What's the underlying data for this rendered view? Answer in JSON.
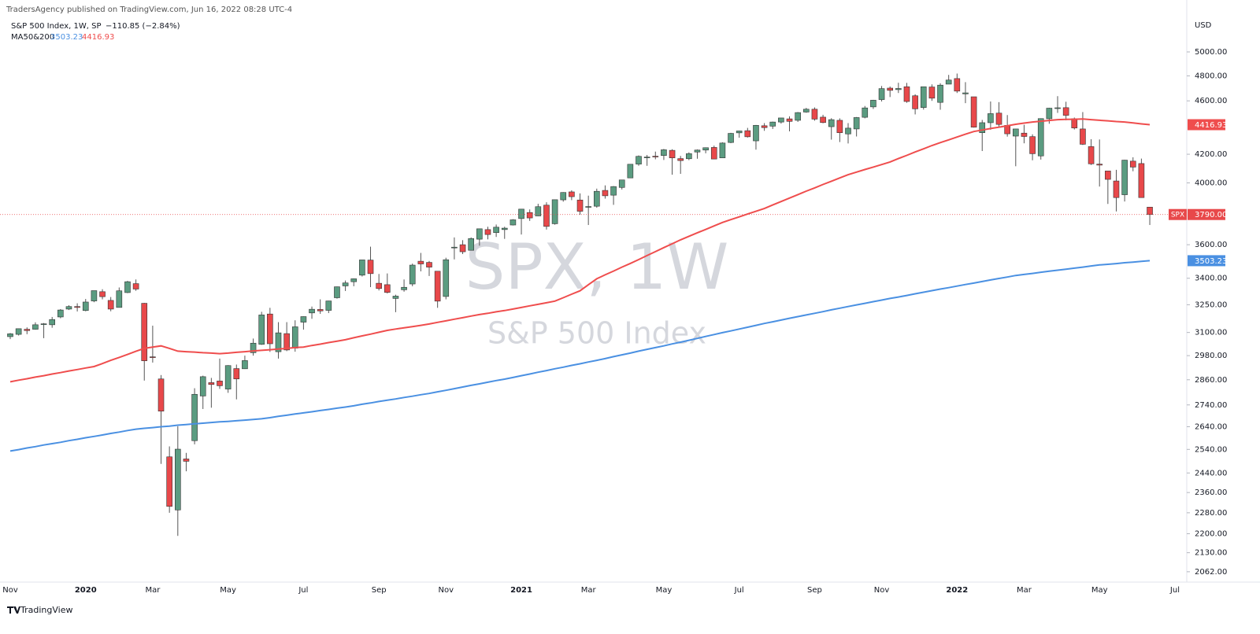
{
  "header": {
    "publisher": "TradersAgency published on TradingView.com, Jun 16, 2022 08:28 UTC-4",
    "symbol": "S&P 500 Index, 1W, SP",
    "change": "−110.85 (−2.84%)",
    "indicator": "MA50&200"
  },
  "chart_data": {
    "type": "candlestick",
    "watermark": "SPX, 1W",
    "watermark_sub": "S&P 500 Index",
    "currency": "USD",
    "symbol": "SPX",
    "last_label": "3790.00",
    "up_color": "#5b9c81",
    "down_color": "#e8484a",
    "log": true,
    "grid": false,
    "categories": [
      "Nov",
      null,
      null,
      null,
      null,
      null,
      null,
      null,
      null,
      "2020",
      null,
      null,
      null,
      null,
      null,
      null,
      null,
      "Mar",
      null,
      null,
      null,
      null,
      null,
      null,
      null,
      null,
      "May",
      null,
      null,
      null,
      null,
      null,
      null,
      null,
      null,
      "Jul",
      null,
      null,
      null,
      null,
      null,
      null,
      null,
      null,
      "Sep",
      null,
      null,
      null,
      null,
      null,
      null,
      null,
      "Nov",
      null,
      null,
      null,
      null,
      null,
      null,
      null,
      null,
      "2021",
      null,
      null,
      null,
      null,
      null,
      null,
      null,
      "Mar",
      null,
      null,
      null,
      null,
      null,
      null,
      null,
      null,
      "May",
      null,
      null,
      null,
      null,
      null,
      null,
      null,
      null,
      "Jul",
      null,
      null,
      null,
      null,
      null,
      null,
      null,
      null,
      "Sep",
      null,
      null,
      null,
      null,
      null,
      null,
      null,
      "Nov",
      null,
      null,
      null,
      null,
      null,
      null,
      null,
      null,
      "2022",
      null,
      null,
      null,
      null,
      null,
      null,
      null,
      "Mar",
      null,
      null,
      null,
      null,
      null,
      null,
      null,
      null,
      "May",
      null,
      null,
      null,
      null,
      null,
      null,
      null,
      null,
      "Jul"
    ],
    "open": [
      3078,
      3090,
      3117,
      3117,
      3143,
      3141,
      3183,
      3226,
      3240,
      3218,
      3271,
      3323,
      3274,
      3235,
      3318,
      3369,
      3258,
      2974,
      2864,
      2508,
      2291,
      2499,
      2578,
      2782,
      2846,
      2854,
      2815,
      2915,
      2914,
      2995,
      3038,
      3199,
      3000,
      3094,
      3018,
      3155,
      3205,
      3224,
      3219,
      3289,
      3356,
      3380,
      3418,
      3507,
      3371,
      3363,
      3285,
      3334,
      3367,
      3500,
      3493,
      3441,
      3296,
      3584,
      3600,
      3566,
      3634,
      3694,
      3675,
      3694,
      3723,
      3764,
      3803,
      3781,
      3851,
      3731,
      3886,
      3939,
      3885,
      3842,
      3844,
      3949,
      3917,
      3969,
      4034,
      4130,
      4179,
      4186,
      4191,
      4228,
      4169,
      4168,
      4216,
      4230,
      4249,
      4174,
      4285,
      4356,
      4372,
      4297,
      4409,
      4406,
      4437,
      4461,
      4450,
      4513,
      4535,
      4474,
      4402,
      4450,
      4348,
      4385,
      4473,
      4553,
      4610,
      4701,
      4689,
      4712,
      4640,
      4548,
      4710,
      4588,
      4733,
      4778,
      4655,
      4632,
      4357,
      4432,
      4505,
      4412,
      4332,
      4354,
      4328,
      4188,
      4462,
      4541,
      4547,
      4462,
      4385,
      4255,
      4130,
      4082,
      4013,
      3920,
      4151,
      4134,
      3838,
      null,
      null,
      null
    ],
    "high": [
      3097,
      3120,
      3127,
      3154,
      3150,
      3183,
      3226,
      3247,
      3258,
      3282,
      3329,
      3337,
      3293,
      3347,
      3385,
      3393,
      3260,
      3136,
      2883,
      2553,
      2642,
      2525,
      2819,
      2880,
      2869,
      2965,
      2932,
      2935,
      2980,
      3068,
      3211,
      3233,
      3155,
      3155,
      3165,
      3186,
      3240,
      3280,
      3272,
      3352,
      3387,
      3399,
      3509,
      3588,
      3425,
      3428,
      3306,
      3393,
      3486,
      3550,
      3502,
      3441,
      3521,
      3645,
      3628,
      3645,
      3699,
      3712,
      3726,
      3712,
      3760,
      3826,
      3823,
      3860,
      3870,
      3887,
      3937,
      3950,
      3929,
      3914,
      3961,
      3983,
      3978,
      4020,
      4130,
      4191,
      4195,
      4219,
      4238,
      4236,
      4188,
      4214,
      4234,
      4249,
      4262,
      4286,
      4356,
      4372,
      4393,
      4415,
      4429,
      4440,
      4468,
      4480,
      4513,
      4545,
      4549,
      4492,
      4466,
      4465,
      4429,
      4475,
      4560,
      4608,
      4718,
      4714,
      4744,
      4743,
      4652,
      4713,
      4731,
      4740,
      4808,
      4819,
      4749,
      4632,
      4453,
      4595,
      4590,
      4490,
      4385,
      4416,
      4345,
      4465,
      4546,
      4637,
      4593,
      4471,
      4513,
      4309,
      4307,
      4082,
      4090,
      4160,
      4178,
      4169,
      3838,
      null,
      null,
      null
    ],
    "low": [
      3065,
      3084,
      3091,
      3115,
      3070,
      3125,
      3176,
      3221,
      3213,
      3214,
      3264,
      3280,
      3214,
      3235,
      3315,
      3328,
      2856,
      2945,
      2478,
      2280,
      2192,
      2447,
      2562,
      2721,
      2727,
      2816,
      2797,
      2766,
      2913,
      2980,
      3035,
      2999,
      2965,
      3003,
      3000,
      3115,
      3173,
      3200,
      3204,
      3284,
      3327,
      3354,
      3410,
      3349,
      3330,
      3313,
      3209,
      3323,
      3354,
      3440,
      3413,
      3233,
      3280,
      3511,
      3543,
      3566,
      3594,
      3633,
      3648,
      3636,
      3720,
      3663,
      3749,
      3780,
      3694,
      3725,
      3874,
      3884,
      3789,
      3723,
      3834,
      3894,
      3853,
      3955,
      4034,
      4118,
      4118,
      4164,
      4159,
      4056,
      4062,
      4158,
      4168,
      4207,
      4164,
      4174,
      4280,
      4320,
      4321,
      4233,
      4371,
      4385,
      4425,
      4367,
      4438,
      4508,
      4447,
      4428,
      4306,
      4288,
      4278,
      4329,
      4465,
      4537,
      4595,
      4630,
      4662,
      4585,
      4495,
      4532,
      4600,
      4531,
      4733,
      4662,
      4582,
      4395,
      4223,
      4379,
      4401,
      4328,
      4115,
      4279,
      4157,
      4162,
      4424,
      4507,
      4450,
      4381,
      4267,
      4124,
      3975,
      3859,
      3810,
      3875,
      4080,
      3900,
      3723,
      null,
      null,
      null
    ],
    "close": [
      3093,
      3120,
      3110,
      3141,
      3146,
      3169,
      3221,
      3240,
      3235,
      3265,
      3329,
      3295,
      3226,
      3328,
      3380,
      3338,
      2954,
      2972,
      2711,
      2305,
      2541,
      2489,
      2790,
      2875,
      2837,
      2831,
      2930,
      2864,
      2955,
      3044,
      3194,
      3041,
      3098,
      3009,
      3130,
      3185,
      3225,
      3216,
      3271,
      3351,
      3373,
      3397,
      3508,
      3427,
      3341,
      3319,
      3298,
      3348,
      3477,
      3484,
      3465,
      3270,
      3509,
      3585,
      3557,
      3638,
      3699,
      3663,
      3709,
      3703,
      3756,
      3825,
      3768,
      3841,
      3714,
      3887,
      3935,
      3907,
      3811,
      3842,
      3943,
      3913,
      3975,
      4020,
      4129,
      4185,
      4180,
      4181,
      4232,
      4174,
      4155,
      4204,
      4230,
      4247,
      4166,
      4281,
      4352,
      4370,
      4327,
      4412,
      4395,
      4437,
      4468,
      4442,
      4509,
      4535,
      4459,
      4433,
      4455,
      4357,
      4391,
      4471,
      4545,
      4605,
      4697,
      4683,
      4698,
      4595,
      4538,
      4712,
      4621,
      4725,
      4766,
      4677,
      4663,
      4398,
      4432,
      4501,
      4419,
      4349,
      4385,
      4329,
      4204,
      4463,
      4543,
      4546,
      4488,
      4392,
      4272,
      4132,
      4123,
      4024,
      3901,
      4158,
      4109,
      3901,
      3790,
      null,
      null,
      null
    ],
    "series": [
      {
        "color": "#4a90e2",
        "values": [
          2533,
          2539,
          2546,
          2552,
          2559,
          2565,
          2571,
          2578,
          2584,
          2591,
          2597,
          2603,
          2610,
          2616,
          2623,
          2629,
          2633,
          2636,
          2640,
          2643,
          2647,
          2650,
          2653,
          2656,
          2659,
          2662,
          2664,
          2667,
          2670,
          2673,
          2676,
          2681,
          2687,
          2692,
          2698,
          2703,
          2708,
          2714,
          2719,
          2725,
          2730,
          2736,
          2743,
          2749,
          2756,
          2762,
          2768,
          2775,
          2781,
          2788,
          2794,
          2802,
          2809,
          2817,
          2825,
          2833,
          2840,
          2848,
          2856,
          2863,
          2871,
          2880,
          2888,
          2897,
          2905,
          2914,
          2922,
          2931,
          2939,
          2948,
          2956,
          2965,
          2975,
          2984,
          2993,
          3003,
          3012,
          3021,
          3030,
          3040,
          3049,
          3059,
          3069,
          3079,
          3089,
          3099,
          3108,
          3118,
          3128,
          3138,
          3148,
          3157,
          3166,
          3176,
          3185,
          3194,
          3203,
          3212,
          3222,
          3231,
          3240,
          3249,
          3258,
          3267,
          3276,
          3285,
          3293,
          3302,
          3311,
          3320,
          3329,
          3338,
          3346,
          3355,
          3364,
          3372,
          3381,
          3390,
          3399,
          3407,
          3416,
          3422,
          3428,
          3435,
          3441,
          3447,
          3453,
          3459,
          3465,
          3472,
          3478,
          3482,
          3486,
          3491,
          3495,
          3499,
          3503.23,
          null,
          null,
          null
        ]
      },
      {
        "color": "#ef4d4d",
        "values": [
          2850,
          2858,
          2865,
          2873,
          2880,
          2888,
          2895,
          2903,
          2910,
          2918,
          2925,
          2940,
          2956,
          2971,
          2986,
          3002,
          3017,
          3024,
          3030,
          3017,
          3003,
          3000,
          2998,
          2995,
          2993,
          2990,
          2993,
          2997,
          3000,
          3004,
          3007,
          3010,
          3014,
          3017,
          3021,
          3024,
          3032,
          3039,
          3047,
          3054,
          3062,
          3072,
          3082,
          3091,
          3101,
          3111,
          3118,
          3125,
          3131,
          3138,
          3145,
          3154,
          3162,
          3171,
          3179,
          3188,
          3196,
          3203,
          3211,
          3218,
          3226,
          3235,
          3244,
          3252,
          3261,
          3270,
          3289,
          3309,
          3328,
          3363,
          3397,
          3420,
          3442,
          3465,
          3487,
          3510,
          3534,
          3558,
          3582,
          3606,
          3630,
          3652,
          3674,
          3695,
          3717,
          3739,
          3757,
          3775,
          3793,
          3811,
          3829,
          3852,
          3875,
          3898,
          3921,
          3944,
          3966,
          3989,
          4011,
          4034,
          4056,
          4074,
          4092,
          4109,
          4127,
          4145,
          4169,
          4192,
          4216,
          4239,
          4263,
          4284,
          4304,
          4325,
          4346,
          4366,
          4377,
          4388,
          4398,
          4409,
          4420,
          4429,
          4437,
          4443,
          4449,
          4455,
          4457,
          4458,
          4460,
          4455,
          4450,
          4446,
          4441,
          4437,
          4430,
          4423,
          4416.93,
          null,
          null,
          null
        ]
      }
    ],
    "ylim": [
      2026,
      5318
    ],
    "yticks": [
      {
        "value": 2062,
        "label": "2062.00"
      },
      {
        "value": 2130,
        "label": "2130.00"
      },
      {
        "value": 2200,
        "label": "2200.00"
      },
      {
        "value": 2280,
        "label": "2280.00"
      },
      {
        "value": 2360,
        "label": "2360.00"
      },
      {
        "value": 2440,
        "label": "2440.00"
      },
      {
        "value": 2540,
        "label": "2540.00"
      },
      {
        "value": 2640,
        "label": "2640.00"
      },
      {
        "value": 2740,
        "label": "2740.00"
      },
      {
        "value": 2860,
        "label": "2860.00"
      },
      {
        "value": 2980,
        "label": "2980.00"
      },
      {
        "value": 3100,
        "label": "3100.00"
      },
      {
        "value": 3250,
        "label": "3250.00"
      },
      {
        "value": 3400,
        "label": "3400.00"
      },
      {
        "value": 3600,
        "label": "3600.00"
      },
      {
        "value": 4000,
        "label": "4000.00"
      },
      {
        "value": 4200,
        "label": "4200.00"
      },
      {
        "value": 4600,
        "label": "4600.00"
      },
      {
        "value": 4800,
        "label": "4800.00"
      },
      {
        "value": 5000,
        "label": "5000.00"
      }
    ]
  },
  "footer": {
    "brand": "TradingView"
  }
}
